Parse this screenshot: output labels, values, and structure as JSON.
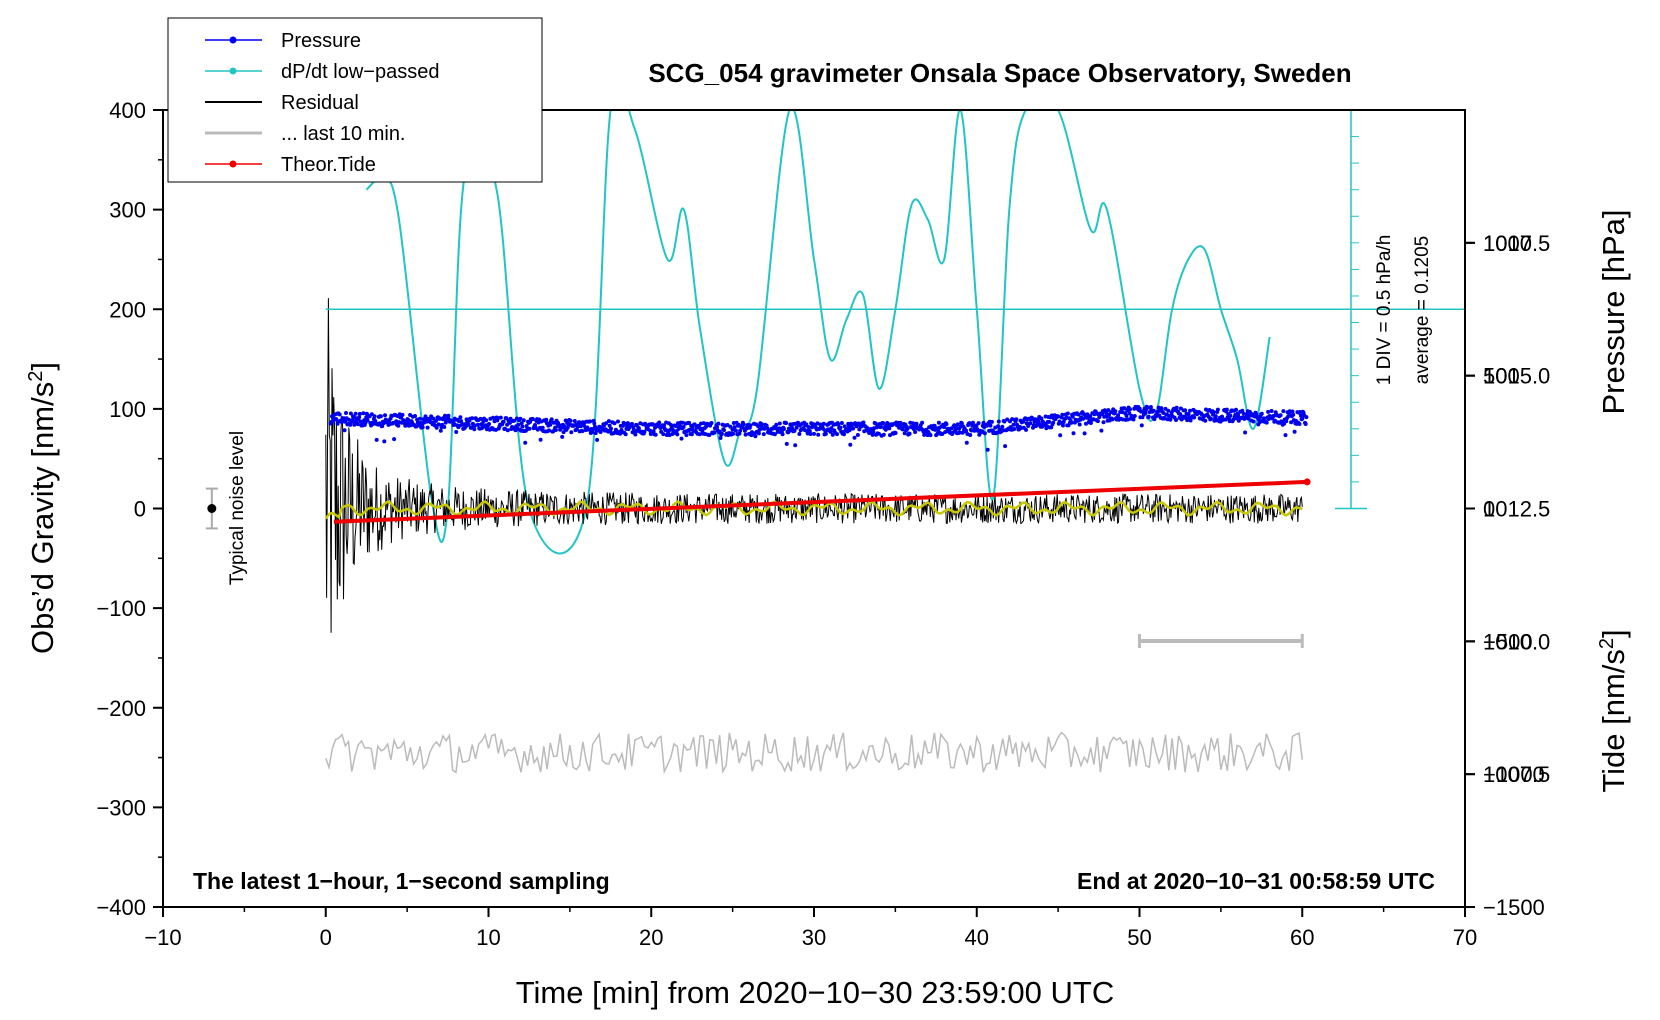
{
  "chart_data": {
    "type": "line",
    "title": "SCG_054 gravimeter Onsala Space Observatory, Sweden",
    "xlabel": "Time [min] from 2020−10−30 23:59:00 UTC",
    "ylabel_left": "Obs’d Gravity [nm/s²]",
    "ylabel_pressure": "Pressure [hPa]",
    "ylabel_tide": "Tide [nm/s²]",
    "xlim": [
      -10,
      70
    ],
    "ylim": [
      -400,
      400
    ],
    "x_ticks": [
      {
        "value": -10,
        "label": "−10"
      },
      {
        "value": 0,
        "label": "0"
      },
      {
        "value": 10,
        "label": "10"
      },
      {
        "value": 20,
        "label": "20"
      },
      {
        "value": 30,
        "label": "30"
      },
      {
        "value": 40,
        "label": "40"
      },
      {
        "value": 50,
        "label": "50"
      },
      {
        "value": 60,
        "label": "60"
      },
      {
        "value": 70,
        "label": "70"
      }
    ],
    "y_ticks": [
      {
        "value": 400,
        "label": "400"
      },
      {
        "value": 300,
        "label": "300"
      },
      {
        "value": 200,
        "label": "200"
      },
      {
        "value": 100,
        "label": "100"
      },
      {
        "value": 0,
        "label": "0"
      },
      {
        "value": -100,
        "label": "−100"
      },
      {
        "value": -200,
        "label": "−200"
      },
      {
        "value": -300,
        "label": "−300"
      },
      {
        "value": -400,
        "label": "−400"
      }
    ],
    "pressure_axis": {
      "range": [
        1005,
        1020
      ],
      "ticks": [
        {
          "value": 1017.5,
          "label": "1017.5"
        },
        {
          "value": 1015.0,
          "label": "1015.0"
        },
        {
          "value": 1012.5,
          "label": "1012.5"
        },
        {
          "value": 1010.0,
          "label": "1010.0"
        },
        {
          "value": 1007.5,
          "label": "1007.5"
        }
      ]
    },
    "tide_axis": {
      "range": [
        -1500,
        1500
      ],
      "ticks": [
        {
          "value": 1000,
          "label": "1000"
        },
        {
          "value": 500,
          "label": "500"
        },
        {
          "value": 0,
          "label": "0"
        },
        {
          "value": -500,
          "label": "−500"
        },
        {
          "value": -1000,
          "label": "−1000"
        },
        {
          "value": -1500,
          "label": "−1500"
        }
      ]
    },
    "legend": [
      {
        "name": "Pressure",
        "color": "#0000ee",
        "marker": true
      },
      {
        "name": "dP/dt low−passed",
        "color": "#22c4c4",
        "marker": true
      },
      {
        "name": "Residual",
        "color": "#000000",
        "marker": false
      },
      {
        "name": "... last 10 min.",
        "color": "#bbbbbb",
        "marker": false
      },
      {
        "name": "Theor.Tide",
        "color": "#ee0000",
        "marker": true
      }
    ],
    "annotations": {
      "note_left": "The latest 1−hour, 1−second sampling",
      "note_right": "End at 2020−10−31 00:58:59 UTC",
      "dpdt_scale": "1 DIV = 0.5 hPa/h",
      "dpdt_average": "average = 0.1205",
      "noise_label": "Typical noise level",
      "noise_level": {
        "x": -7,
        "y": 0,
        "err": 20
      }
    },
    "series": {
      "pressure": {
        "name": "Pressure",
        "unit": "hPa",
        "x_range": [
          0.3,
          60.3
        ],
        "level_points": [
          [
            0.3,
            1014.2
          ],
          [
            10,
            1014.1
          ],
          [
            20,
            1014.0
          ],
          [
            30,
            1014.0
          ],
          [
            40,
            1014.0
          ],
          [
            50,
            1014.3
          ],
          [
            60.3,
            1014.2
          ]
        ]
      },
      "dpdt": {
        "name": "dP/dt low−passed",
        "baseline_y": 200,
        "points": [
          [
            2.5,
            320
          ],
          [
            3.5,
            330
          ],
          [
            4.5,
            290
          ],
          [
            6.5,
            10
          ],
          [
            7.5,
            0
          ],
          [
            8.5,
            330
          ],
          [
            10.5,
            320
          ],
          [
            12.5,
            0
          ],
          [
            16,
            0
          ],
          [
            17.5,
            400
          ],
          [
            19,
            380
          ],
          [
            21,
            250
          ],
          [
            22,
            300
          ],
          [
            23,
            180
          ],
          [
            24.5,
            47
          ],
          [
            25.5,
            80
          ],
          [
            26.5,
            120
          ],
          [
            28.5,
            400
          ],
          [
            30,
            250
          ],
          [
            31,
            150
          ],
          [
            32,
            190
          ],
          [
            33,
            215
          ],
          [
            34,
            120
          ],
          [
            35,
            200
          ],
          [
            36,
            305
          ],
          [
            37,
            290
          ],
          [
            38,
            250
          ],
          [
            39,
            400
          ],
          [
            40,
            200
          ],
          [
            41,
            10
          ],
          [
            42,
            300
          ],
          [
            43,
            400
          ],
          [
            45,
            400
          ],
          [
            47,
            280
          ],
          [
            48,
            300
          ],
          [
            50,
            120
          ],
          [
            51,
            95
          ],
          [
            52,
            200
          ],
          [
            53,
            250
          ],
          [
            54,
            260
          ],
          [
            55,
            200
          ],
          [
            56,
            150
          ],
          [
            57,
            80
          ],
          [
            58,
            172
          ]
        ]
      },
      "residual": {
        "name": "Residual",
        "x_range": [
          0,
          60
        ],
        "initial_amplitude": 195,
        "steady_amplitude": 15
      },
      "last10": {
        "name": "... last 10 min.",
        "x_range": [
          50,
          60
        ],
        "display_offset": -245,
        "amplitude": 20
      },
      "tide": {
        "name": "Theor.Tide",
        "unit": "nm/s²",
        "points": [
          [
            0.5,
            -50
          ],
          [
            60.3,
            100
          ]
        ]
      },
      "smooth": {
        "name": "smoothed residual",
        "color": "#c8c800"
      }
    }
  }
}
